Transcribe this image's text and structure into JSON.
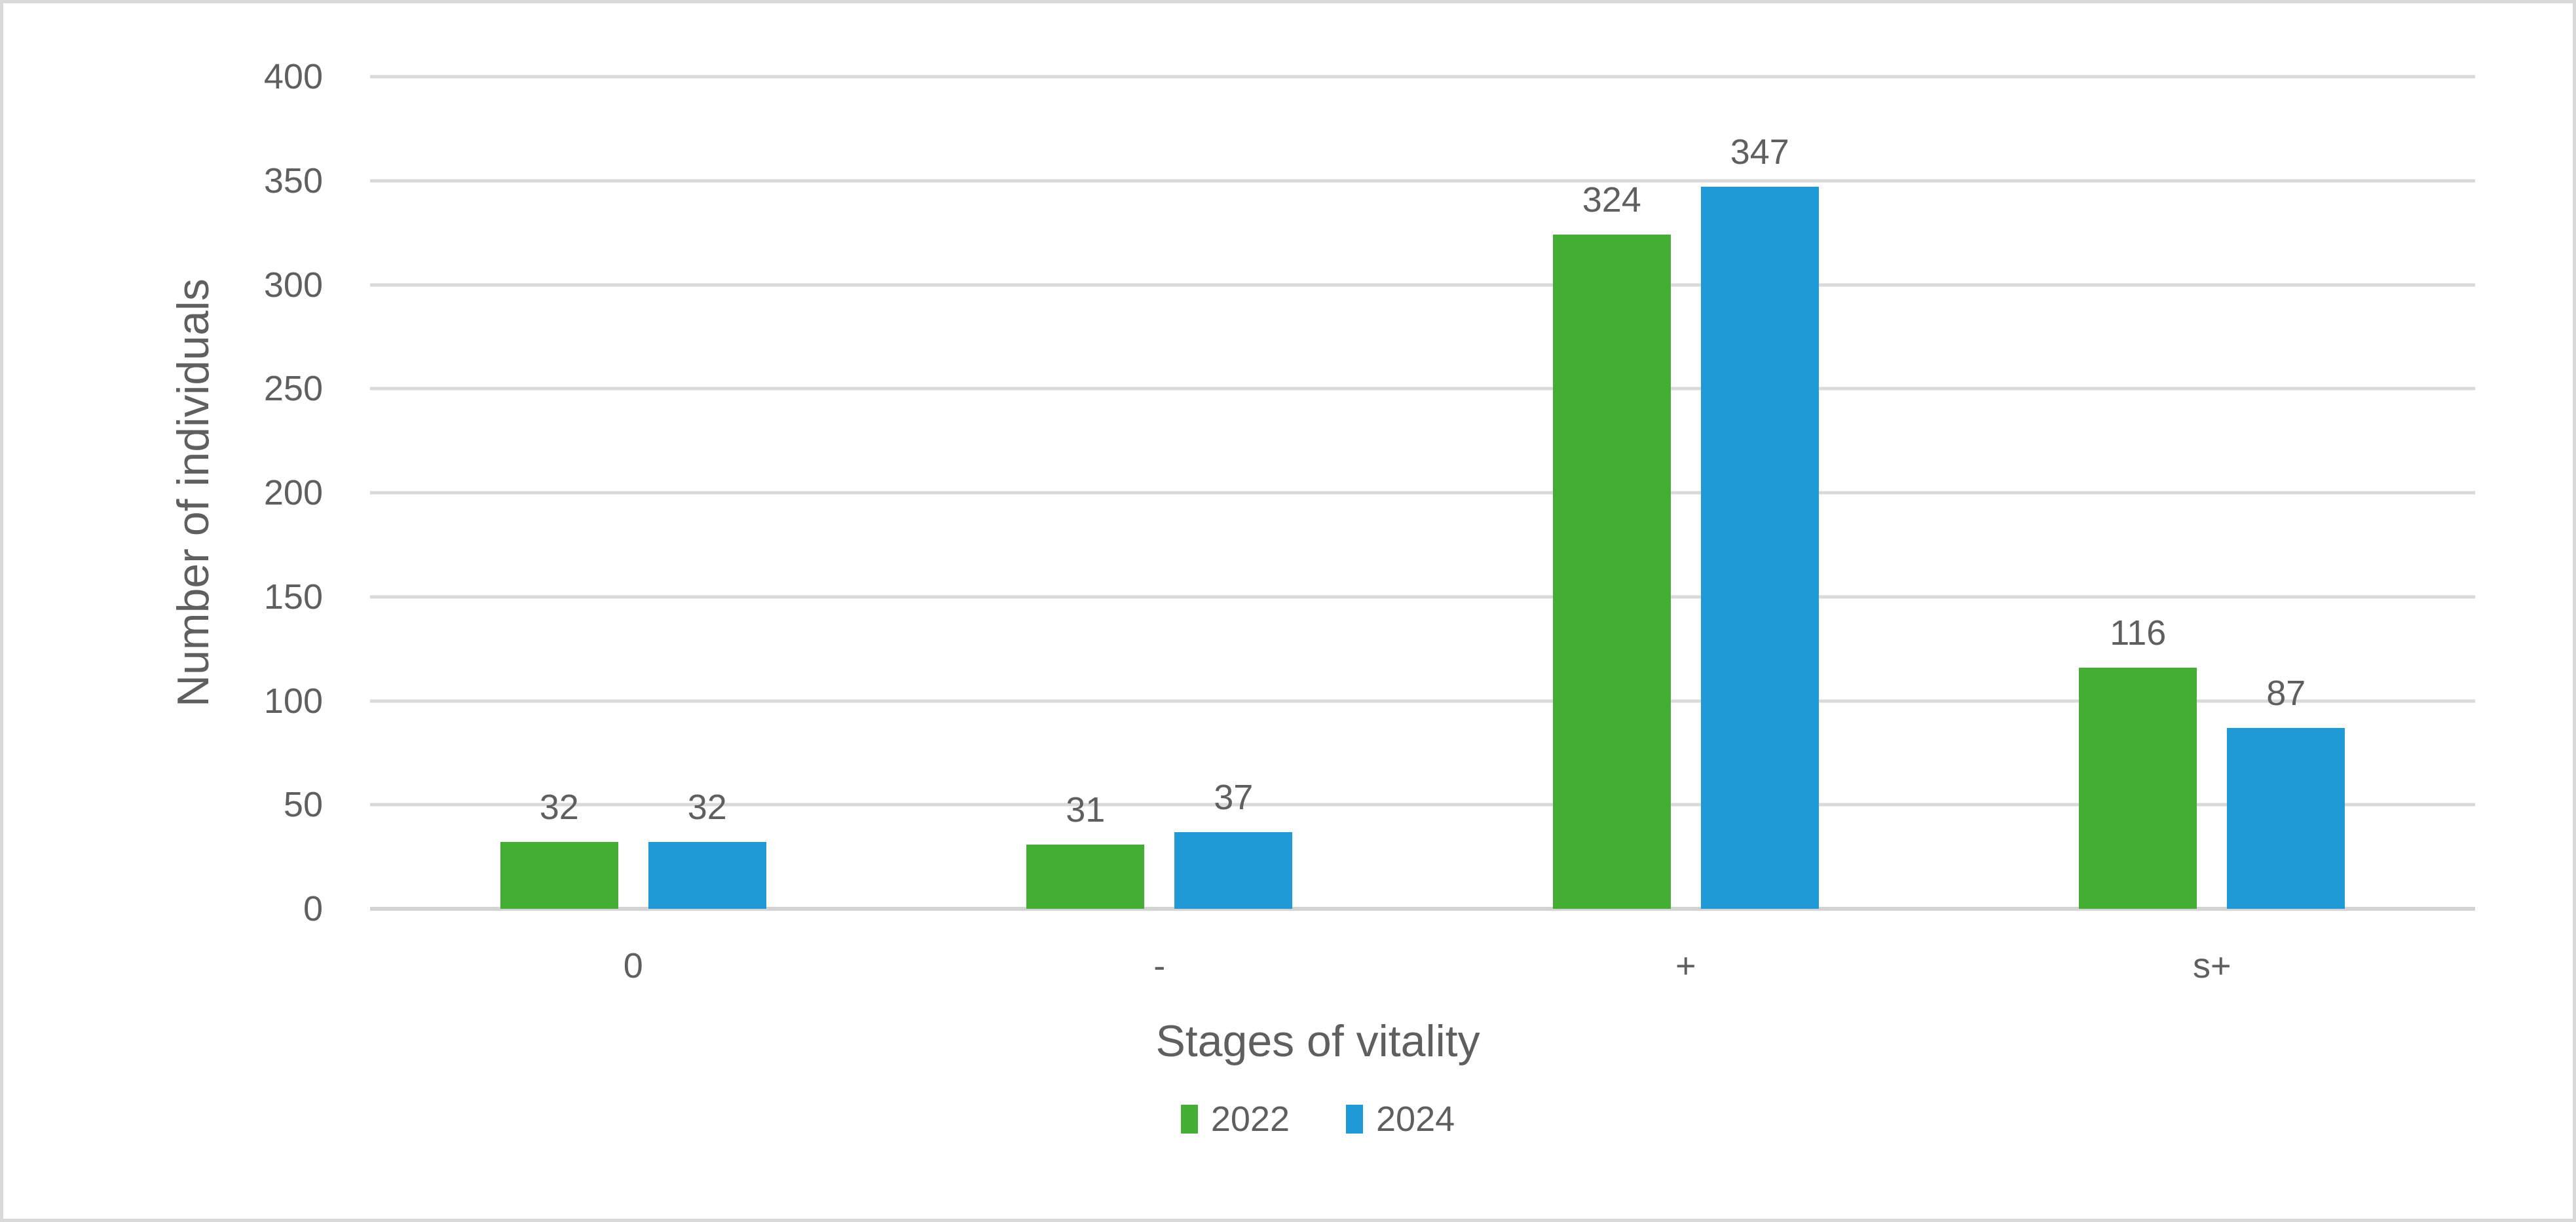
{
  "frame": {
    "background": "#FFFFFF",
    "border_color": "#D9D9D9"
  },
  "chart_data": {
    "type": "bar",
    "categories": [
      "0",
      "-",
      "+",
      "s+"
    ],
    "series": [
      {
        "name": "2022",
        "color": "#44AD34",
        "values": [
          32,
          31,
          324,
          116
        ]
      },
      {
        "name": "2024",
        "color": "#1F9AD7",
        "values": [
          32,
          37,
          347,
          87
        ]
      }
    ],
    "xlabel": "Stages of vitality",
    "ylabel": "Number of individuals",
    "ylim": [
      0,
      400
    ],
    "yticks": [
      400,
      350,
      300,
      250,
      200,
      150,
      100,
      50,
      0
    ],
    "grid": true,
    "gridline_color": "#D9D9D9",
    "baseline_color": "#D3D3D3",
    "data_labels": true,
    "legend_position": "bottom",
    "text_color": "#5F5F5F"
  }
}
